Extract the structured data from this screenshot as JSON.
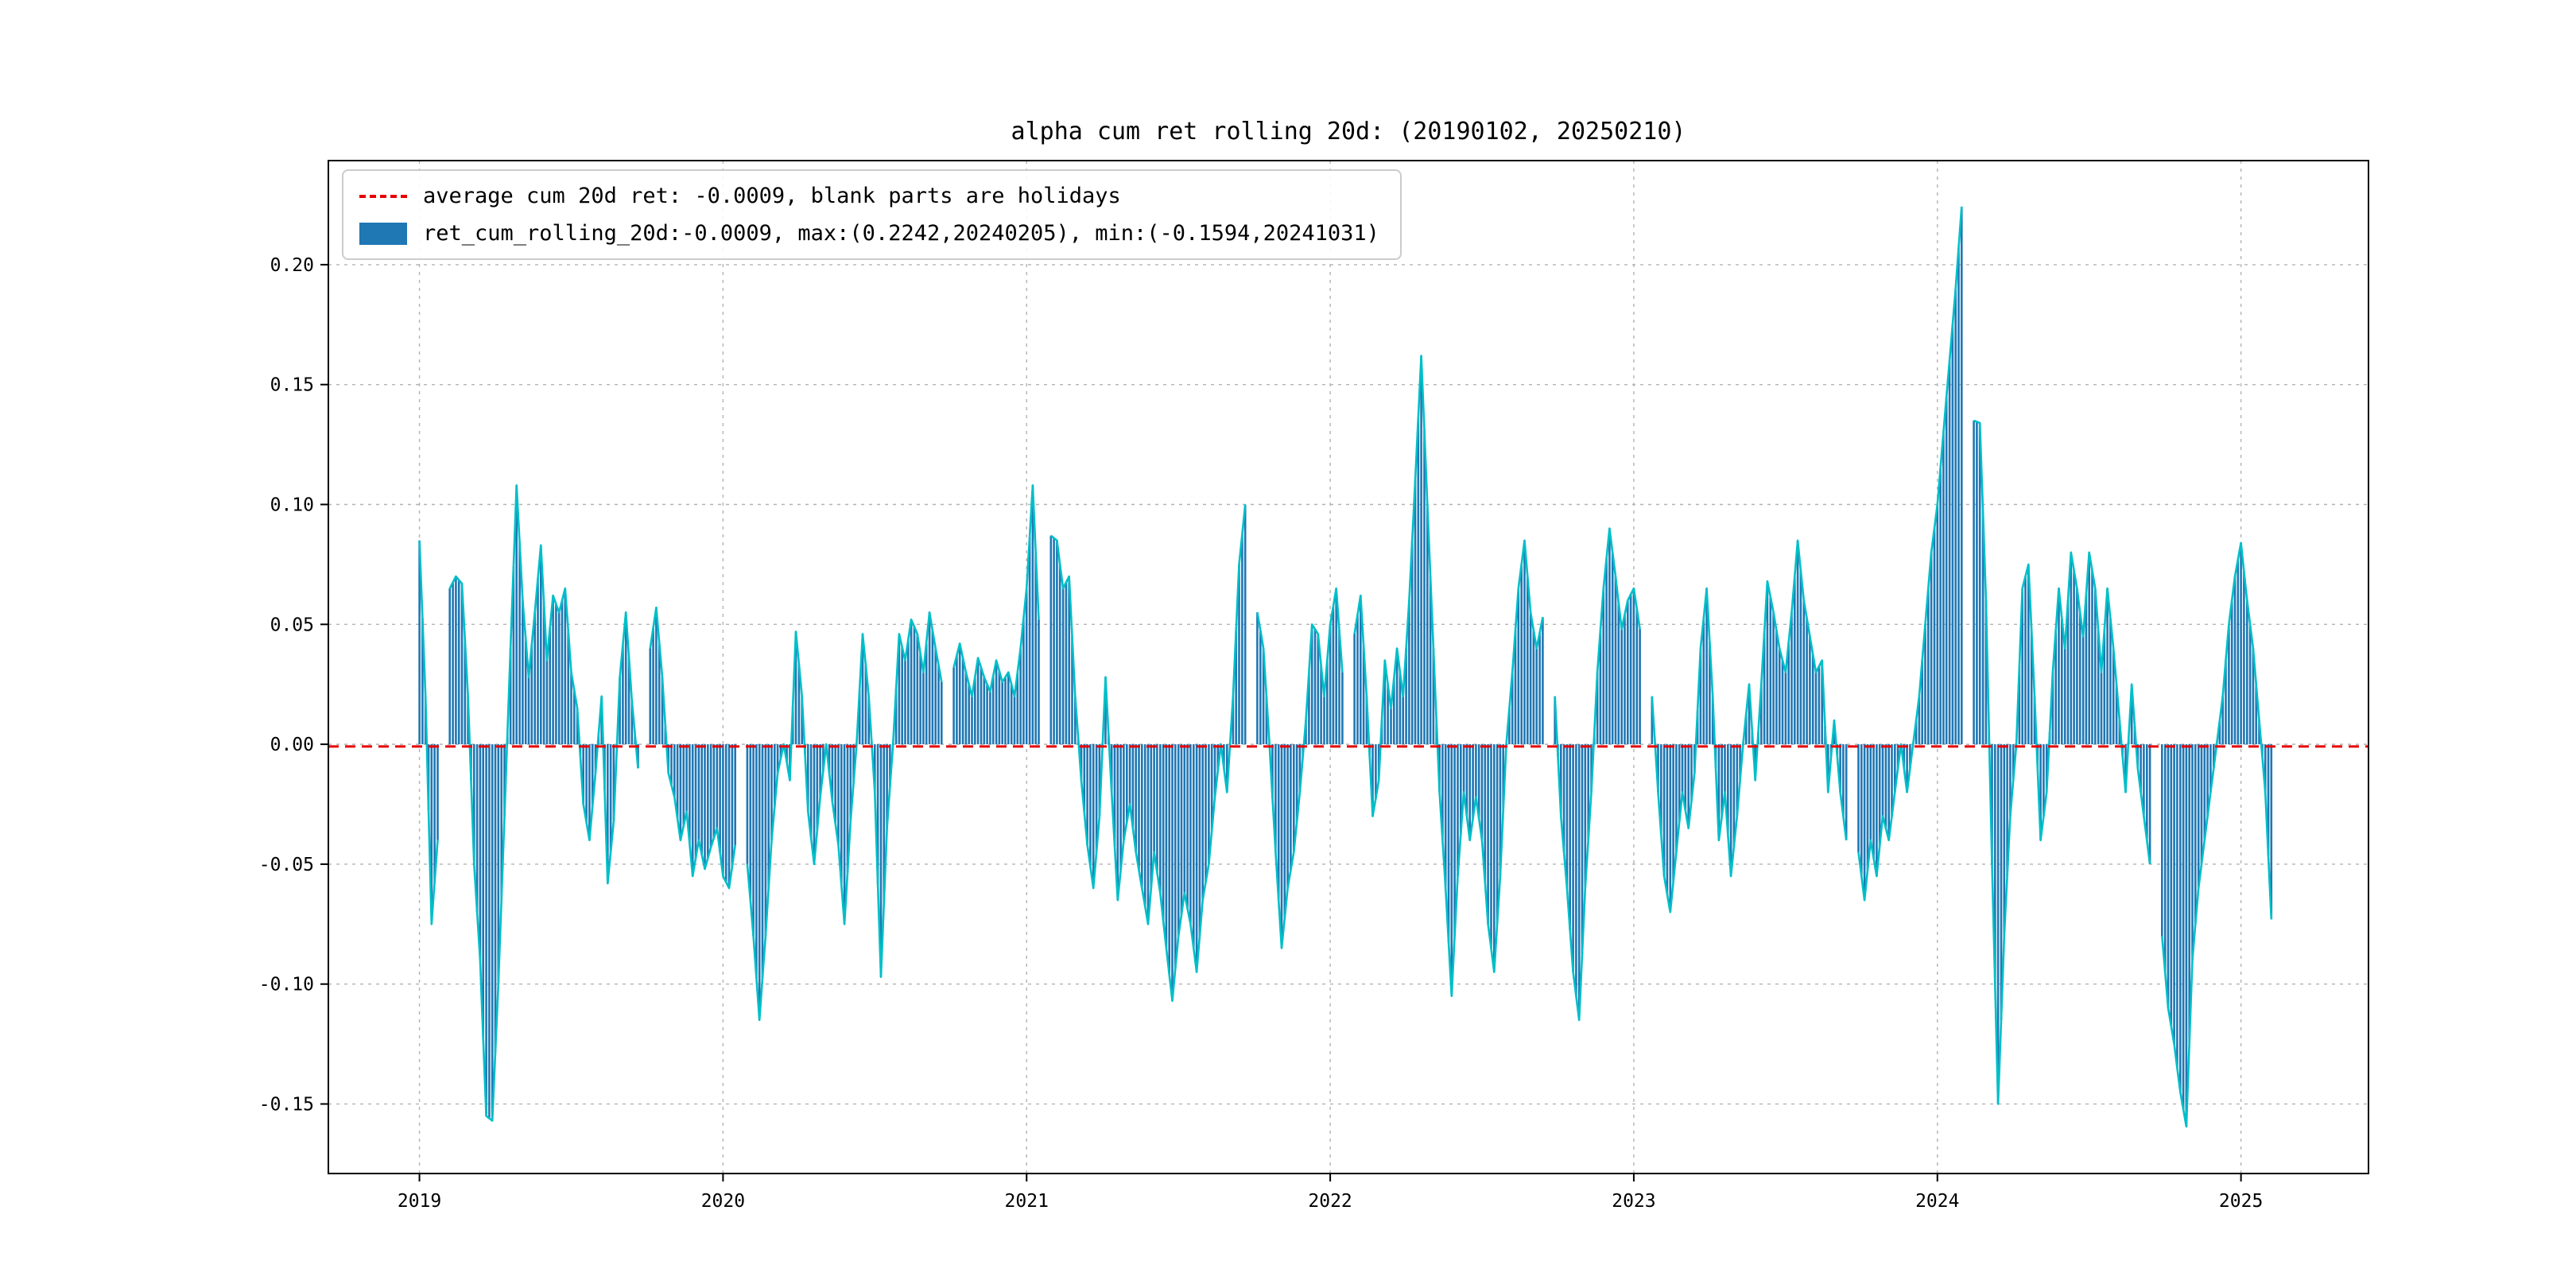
{
  "figure": {
    "title": "alpha cum ret rolling 20d: (20190102, 20250210)"
  },
  "legend": {
    "items": [
      {
        "type": "dashed-line",
        "color": "#e60000",
        "label": "average cum 20d ret: -0.0009, blank parts are holidays"
      },
      {
        "type": "filled-bar",
        "color": "#1f77b4",
        "label": "ret_cum_rolling_20d:-0.0009, max:(0.2242,20240205), min:(-0.1594,20241031)"
      }
    ]
  },
  "chart_data": {
    "type": "bar",
    "title": "alpha cum ret rolling 20d: (20190102, 20250210)",
    "series_name": "ret_cum_rolling_20d",
    "bar_color": "#1f77b4",
    "line_color": "#00bfc8",
    "average_line": {
      "value": -0.0009,
      "color": "#e60000",
      "style": "dashed",
      "label": "average cum 20d ret: -0.0009"
    },
    "max": {
      "value": 0.2242,
      "date": "20240205"
    },
    "min": {
      "value": -0.1594,
      "date": "20241031"
    },
    "date_range": [
      "20190102",
      "20250210"
    ],
    "grid": true,
    "xlim": [
      2018.7,
      2025.42
    ],
    "ylim": [
      -0.179,
      0.2434
    ],
    "xticks": [
      {
        "v": 2019,
        "label": "2019"
      },
      {
        "v": 2020,
        "label": "2020"
      },
      {
        "v": 2021,
        "label": "2021"
      },
      {
        "v": 2022,
        "label": "2022"
      },
      {
        "v": 2023,
        "label": "2023"
      },
      {
        "v": 2024,
        "label": "2024"
      },
      {
        "v": 2025,
        "label": "2025"
      }
    ],
    "yticks": [
      {
        "v": 0.2,
        "label": "0.20"
      },
      {
        "v": 0.15,
        "label": "0.15"
      },
      {
        "v": 0.1,
        "label": "0.10"
      },
      {
        "v": 0.05,
        "label": "0.05"
      },
      {
        "v": 0.0,
        "label": "0.00"
      },
      {
        "v": -0.05,
        "label": "-0.05"
      },
      {
        "v": -0.1,
        "label": "-0.10"
      },
      {
        "v": -0.15,
        "label": "-0.15"
      }
    ],
    "points": [
      [
        2019.0,
        0.085
      ],
      [
        2019.02,
        0.02
      ],
      [
        2019.04,
        -0.075
      ],
      [
        2019.06,
        -0.04
      ],
      [
        2019.08,
        null
      ],
      [
        2019.1,
        0.065
      ],
      [
        2019.12,
        0.07
      ],
      [
        2019.14,
        0.067
      ],
      [
        2019.16,
        0.02
      ],
      [
        2019.18,
        -0.05
      ],
      [
        2019.2,
        -0.09
      ],
      [
        2019.22,
        -0.155
      ],
      [
        2019.24,
        -0.157
      ],
      [
        2019.26,
        -0.1
      ],
      [
        2019.28,
        -0.03
      ],
      [
        2019.3,
        0.04
      ],
      [
        2019.32,
        0.108
      ],
      [
        2019.34,
        0.06
      ],
      [
        2019.36,
        0.028
      ],
      [
        2019.38,
        0.055
      ],
      [
        2019.4,
        0.083
      ],
      [
        2019.42,
        0.035
      ],
      [
        2019.44,
        0.062
      ],
      [
        2019.46,
        0.055
      ],
      [
        2019.48,
        0.065
      ],
      [
        2019.5,
        0.03
      ],
      [
        2019.52,
        0.015
      ],
      [
        2019.54,
        -0.025
      ],
      [
        2019.56,
        -0.04
      ],
      [
        2019.58,
        -0.012
      ],
      [
        2019.6,
        0.02
      ],
      [
        2019.62,
        -0.058
      ],
      [
        2019.64,
        -0.032
      ],
      [
        2019.66,
        0.028
      ],
      [
        2019.68,
        0.055
      ],
      [
        2019.7,
        0.018
      ],
      [
        2019.72,
        -0.01
      ],
      [
        2019.74,
        null
      ],
      [
        2019.76,
        0.04
      ],
      [
        2019.78,
        0.057
      ],
      [
        2019.8,
        0.028
      ],
      [
        2019.82,
        -0.012
      ],
      [
        2019.84,
        -0.022
      ],
      [
        2019.86,
        -0.04
      ],
      [
        2019.88,
        -0.028
      ],
      [
        2019.9,
        -0.055
      ],
      [
        2019.92,
        -0.04
      ],
      [
        2019.94,
        -0.052
      ],
      [
        2019.96,
        -0.043
      ],
      [
        2019.98,
        -0.035
      ],
      [
        2020.0,
        -0.055
      ],
      [
        2020.02,
        -0.06
      ],
      [
        2020.04,
        -0.042
      ],
      [
        2020.06,
        null
      ],
      [
        2020.08,
        -0.05
      ],
      [
        2020.1,
        -0.08
      ],
      [
        2020.12,
        -0.115
      ],
      [
        2020.14,
        -0.08
      ],
      [
        2020.16,
        -0.04
      ],
      [
        2020.18,
        -0.012
      ],
      [
        2020.2,
        0.0
      ],
      [
        2020.22,
        -0.015
      ],
      [
        2020.24,
        0.047
      ],
      [
        2020.26,
        0.02
      ],
      [
        2020.28,
        -0.028
      ],
      [
        2020.3,
        -0.05
      ],
      [
        2020.32,
        -0.022
      ],
      [
        2020.34,
        0.0
      ],
      [
        2020.36,
        -0.024
      ],
      [
        2020.38,
        -0.042
      ],
      [
        2020.4,
        -0.075
      ],
      [
        2020.42,
        -0.032
      ],
      [
        2020.44,
        0.0
      ],
      [
        2020.46,
        0.046
      ],
      [
        2020.48,
        0.02
      ],
      [
        2020.5,
        -0.02
      ],
      [
        2020.52,
        -0.097
      ],
      [
        2020.54,
        -0.035
      ],
      [
        2020.56,
        0.0
      ],
      [
        2020.58,
        0.046
      ],
      [
        2020.6,
        0.035
      ],
      [
        2020.62,
        0.052
      ],
      [
        2020.64,
        0.046
      ],
      [
        2020.66,
        0.03
      ],
      [
        2020.68,
        0.055
      ],
      [
        2020.7,
        0.04
      ],
      [
        2020.72,
        0.026
      ],
      [
        2020.74,
        null
      ],
      [
        2020.76,
        0.032
      ],
      [
        2020.78,
        0.042
      ],
      [
        2020.8,
        0.03
      ],
      [
        2020.82,
        0.02
      ],
      [
        2020.84,
        0.036
      ],
      [
        2020.86,
        0.028
      ],
      [
        2020.88,
        0.022
      ],
      [
        2020.9,
        0.035
      ],
      [
        2020.92,
        0.026
      ],
      [
        2020.94,
        0.03
      ],
      [
        2020.96,
        0.02
      ],
      [
        2020.98,
        0.04
      ],
      [
        2021.0,
        0.065
      ],
      [
        2021.02,
        0.108
      ],
      [
        2021.04,
        0.052
      ],
      [
        2021.06,
        null
      ],
      [
        2021.08,
        0.087
      ],
      [
        2021.1,
        0.085
      ],
      [
        2021.12,
        0.065
      ],
      [
        2021.14,
        0.07
      ],
      [
        2021.16,
        0.02
      ],
      [
        2021.18,
        -0.015
      ],
      [
        2021.2,
        -0.042
      ],
      [
        2021.22,
        -0.06
      ],
      [
        2021.24,
        -0.03
      ],
      [
        2021.26,
        0.028
      ],
      [
        2021.28,
        -0.02
      ],
      [
        2021.3,
        -0.065
      ],
      [
        2021.32,
        -0.04
      ],
      [
        2021.34,
        -0.025
      ],
      [
        2021.36,
        -0.045
      ],
      [
        2021.38,
        -0.06
      ],
      [
        2021.4,
        -0.075
      ],
      [
        2021.42,
        -0.045
      ],
      [
        2021.44,
        -0.062
      ],
      [
        2021.46,
        -0.085
      ],
      [
        2021.48,
        -0.107
      ],
      [
        2021.5,
        -0.08
      ],
      [
        2021.52,
        -0.062
      ],
      [
        2021.54,
        -0.075
      ],
      [
        2021.56,
        -0.095
      ],
      [
        2021.58,
        -0.065
      ],
      [
        2021.6,
        -0.05
      ],
      [
        2021.62,
        -0.022
      ],
      [
        2021.64,
        0.0
      ],
      [
        2021.66,
        -0.02
      ],
      [
        2021.68,
        0.02
      ],
      [
        2021.7,
        0.075
      ],
      [
        2021.72,
        0.1
      ],
      [
        2021.74,
        null
      ],
      [
        2021.76,
        0.055
      ],
      [
        2021.78,
        0.04
      ],
      [
        2021.8,
        0.0
      ],
      [
        2021.82,
        -0.045
      ],
      [
        2021.84,
        -0.085
      ],
      [
        2021.86,
        -0.06
      ],
      [
        2021.88,
        -0.045
      ],
      [
        2021.9,
        -0.02
      ],
      [
        2021.92,
        0.01
      ],
      [
        2021.94,
        0.05
      ],
      [
        2021.96,
        0.046
      ],
      [
        2021.98,
        0.02
      ],
      [
        2022.0,
        0.05
      ],
      [
        2022.02,
        0.065
      ],
      [
        2022.04,
        0.03
      ],
      [
        2022.06,
        null
      ],
      [
        2022.08,
        0.046
      ],
      [
        2022.1,
        0.062
      ],
      [
        2022.12,
        0.02
      ],
      [
        2022.14,
        -0.03
      ],
      [
        2022.16,
        -0.015
      ],
      [
        2022.18,
        0.035
      ],
      [
        2022.2,
        0.015
      ],
      [
        2022.22,
        0.04
      ],
      [
        2022.24,
        0.02
      ],
      [
        2022.26,
        0.06
      ],
      [
        2022.28,
        0.11
      ],
      [
        2022.3,
        0.162
      ],
      [
        2022.32,
        0.1
      ],
      [
        2022.34,
        0.04
      ],
      [
        2022.36,
        -0.02
      ],
      [
        2022.38,
        -0.06
      ],
      [
        2022.4,
        -0.105
      ],
      [
        2022.42,
        -0.055
      ],
      [
        2022.44,
        -0.02
      ],
      [
        2022.46,
        -0.04
      ],
      [
        2022.48,
        -0.022
      ],
      [
        2022.5,
        -0.04
      ],
      [
        2022.52,
        -0.075
      ],
      [
        2022.54,
        -0.095
      ],
      [
        2022.56,
        -0.055
      ],
      [
        2022.58,
        0.0
      ],
      [
        2022.6,
        0.03
      ],
      [
        2022.62,
        0.065
      ],
      [
        2022.64,
        0.085
      ],
      [
        2022.66,
        0.055
      ],
      [
        2022.68,
        0.04
      ],
      [
        2022.7,
        0.053
      ],
      [
        2022.72,
        null
      ],
      [
        2022.74,
        0.02
      ],
      [
        2022.76,
        -0.03
      ],
      [
        2022.78,
        -0.06
      ],
      [
        2022.8,
        -0.095
      ],
      [
        2022.82,
        -0.115
      ],
      [
        2022.84,
        -0.06
      ],
      [
        2022.86,
        -0.02
      ],
      [
        2022.88,
        0.03
      ],
      [
        2022.9,
        0.065
      ],
      [
        2022.92,
        0.09
      ],
      [
        2022.94,
        0.07
      ],
      [
        2022.96,
        0.048
      ],
      [
        2022.98,
        0.06
      ],
      [
        2023.0,
        0.065
      ],
      [
        2023.02,
        0.048
      ],
      [
        2023.04,
        null
      ],
      [
        2023.06,
        0.02
      ],
      [
        2023.08,
        -0.02
      ],
      [
        2023.1,
        -0.055
      ],
      [
        2023.12,
        -0.07
      ],
      [
        2023.14,
        -0.045
      ],
      [
        2023.16,
        -0.02
      ],
      [
        2023.18,
        -0.035
      ],
      [
        2023.2,
        -0.012
      ],
      [
        2023.22,
        0.04
      ],
      [
        2023.24,
        0.065
      ],
      [
        2023.26,
        0.02
      ],
      [
        2023.28,
        -0.04
      ],
      [
        2023.3,
        -0.02
      ],
      [
        2023.32,
        -0.055
      ],
      [
        2023.34,
        -0.03
      ],
      [
        2023.36,
        0.0
      ],
      [
        2023.38,
        0.025
      ],
      [
        2023.4,
        -0.015
      ],
      [
        2023.42,
        0.025
      ],
      [
        2023.44,
        0.068
      ],
      [
        2023.46,
        0.055
      ],
      [
        2023.48,
        0.04
      ],
      [
        2023.5,
        0.03
      ],
      [
        2023.52,
        0.055
      ],
      [
        2023.54,
        0.085
      ],
      [
        2023.56,
        0.06
      ],
      [
        2023.58,
        0.045
      ],
      [
        2023.6,
        0.03
      ],
      [
        2023.62,
        0.035
      ],
      [
        2023.64,
        -0.02
      ],
      [
        2023.66,
        0.01
      ],
      [
        2023.68,
        -0.02
      ],
      [
        2023.7,
        -0.04
      ],
      [
        2023.72,
        null
      ],
      [
        2023.74,
        -0.045
      ],
      [
        2023.76,
        -0.065
      ],
      [
        2023.78,
        -0.04
      ],
      [
        2023.8,
        -0.055
      ],
      [
        2023.82,
        -0.03
      ],
      [
        2023.84,
        -0.04
      ],
      [
        2023.86,
        -0.02
      ],
      [
        2023.88,
        0.0
      ],
      [
        2023.9,
        -0.02
      ],
      [
        2023.92,
        0.0
      ],
      [
        2023.94,
        0.02
      ],
      [
        2023.96,
        0.05
      ],
      [
        2023.98,
        0.08
      ],
      [
        2024.0,
        0.1
      ],
      [
        2024.02,
        0.13
      ],
      [
        2024.04,
        0.16
      ],
      [
        2024.06,
        0.19
      ],
      [
        2024.08,
        0.2242
      ],
      [
        2024.1,
        null
      ],
      [
        2024.12,
        0.135
      ],
      [
        2024.14,
        0.134
      ],
      [
        2024.16,
        0.06
      ],
      [
        2024.18,
        -0.05
      ],
      [
        2024.2,
        -0.15
      ],
      [
        2024.22,
        -0.08
      ],
      [
        2024.24,
        -0.03
      ],
      [
        2024.26,
        0.0
      ],
      [
        2024.28,
        0.065
      ],
      [
        2024.3,
        0.075
      ],
      [
        2024.32,
        0.02
      ],
      [
        2024.34,
        -0.04
      ],
      [
        2024.36,
        -0.02
      ],
      [
        2024.38,
        0.03
      ],
      [
        2024.4,
        0.065
      ],
      [
        2024.42,
        0.04
      ],
      [
        2024.44,
        0.08
      ],
      [
        2024.46,
        0.065
      ],
      [
        2024.48,
        0.045
      ],
      [
        2024.5,
        0.08
      ],
      [
        2024.52,
        0.065
      ],
      [
        2024.54,
        0.03
      ],
      [
        2024.56,
        0.065
      ],
      [
        2024.58,
        0.04
      ],
      [
        2024.6,
        0.01
      ],
      [
        2024.62,
        -0.02
      ],
      [
        2024.64,
        0.025
      ],
      [
        2024.66,
        -0.01
      ],
      [
        2024.68,
        -0.03
      ],
      [
        2024.7,
        -0.05
      ],
      [
        2024.72,
        null
      ],
      [
        2024.74,
        -0.08
      ],
      [
        2024.76,
        -0.11
      ],
      [
        2024.78,
        -0.125
      ],
      [
        2024.8,
        -0.145
      ],
      [
        2024.82,
        -0.1594
      ],
      [
        2024.84,
        -0.09
      ],
      [
        2024.86,
        -0.06
      ],
      [
        2024.88,
        -0.04
      ],
      [
        2024.9,
        -0.02
      ],
      [
        2024.92,
        0.0
      ],
      [
        2024.94,
        0.02
      ],
      [
        2024.96,
        0.05
      ],
      [
        2024.98,
        0.07
      ],
      [
        2025.0,
        0.084
      ],
      [
        2025.02,
        0.06
      ],
      [
        2025.04,
        0.04
      ],
      [
        2025.06,
        0.01
      ],
      [
        2025.08,
        -0.02
      ],
      [
        2025.1,
        -0.073
      ]
    ]
  }
}
